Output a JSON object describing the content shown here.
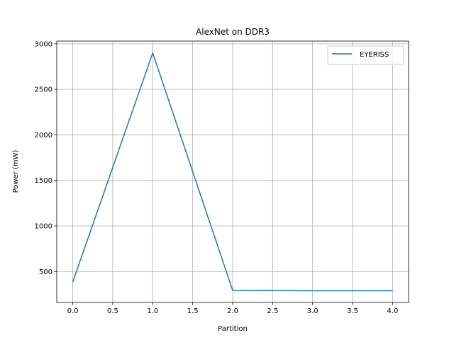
{
  "chart_data": {
    "type": "line",
    "title": "AlexNet on DDR3",
    "xlabel": "Partition",
    "ylabel": "Power (mW)",
    "xlim": [
      -0.2,
      4.2
    ],
    "ylim": [
      160,
      3030
    ],
    "xticks": [
      0.0,
      0.5,
      1.0,
      1.5,
      2.0,
      2.5,
      3.0,
      3.5,
      4.0
    ],
    "xtick_labels": [
      "0.0",
      "0.5",
      "1.0",
      "1.5",
      "2.0",
      "2.5",
      "3.0",
      "3.5",
      "4.0"
    ],
    "yticks": [
      500,
      1000,
      1500,
      2000,
      2500,
      3000
    ],
    "ytick_labels": [
      "500",
      "1000",
      "1500",
      "2000",
      "2500",
      "3000"
    ],
    "grid": true,
    "legend_position": "upper-right",
    "series": [
      {
        "name": "EYERISS",
        "color": "#1f77b4",
        "x": [
          0,
          1,
          2,
          3,
          4
        ],
        "y": [
          385,
          2900,
          292,
          288,
          288
        ]
      }
    ]
  }
}
